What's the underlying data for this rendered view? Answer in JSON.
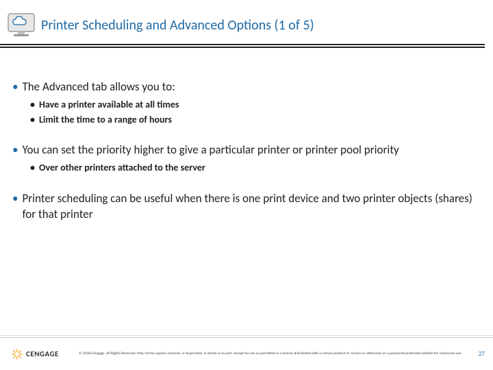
{
  "header": {
    "title": "Printer Scheduling and Advanced Options (1 of 5)",
    "title_color": "#1f6aa5"
  },
  "bullets": [
    {
      "level": 1,
      "text": "The Advanced tab allows you to:"
    },
    {
      "level": 2,
      "text": "Have a printer available at all times"
    },
    {
      "level": 2,
      "text": "Limit the time to a range of hours"
    },
    {
      "level": 1,
      "spacer": true
    },
    {
      "level": 1,
      "text": "You can set the priority higher to give a particular printer or printer pool priority"
    },
    {
      "level": 2,
      "text": "Over other printers attached to the server"
    },
    {
      "level": 1,
      "spacer": true
    },
    {
      "level": 1,
      "text": "Printer scheduling can be useful when there is one print device and two printer objects (shares) for that printer"
    }
  ],
  "footer": {
    "brand": "CENGAGE",
    "copyright": "© 2018 Cengage. All Rights Reserved. May not be copied, scanned, or duplicated, in whole or in part, except for use as permitted in a license distributed with a certain product or service or otherwise on a password-protected website for classroom use.",
    "page_number": "27"
  },
  "colors": {
    "accent": "#1f6aa5",
    "text": "#222222",
    "background": "#ffffff",
    "rule": "#222222"
  }
}
